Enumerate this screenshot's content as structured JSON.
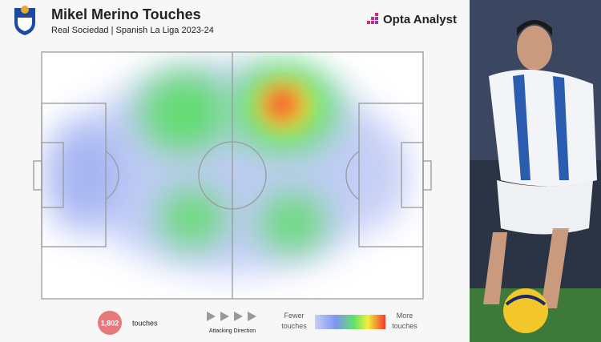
{
  "header": {
    "title": "Mikel Merino Touches",
    "subtitle": "Real Sociedad | Spanish La Liga 2023-24",
    "brand": "Opta Analyst"
  },
  "footer": {
    "touch_count": "1,802",
    "touch_label": "touches",
    "direction_label": "Attacking Direction",
    "legend_low": "Fewer touches",
    "legend_high": "More touches"
  }
}
